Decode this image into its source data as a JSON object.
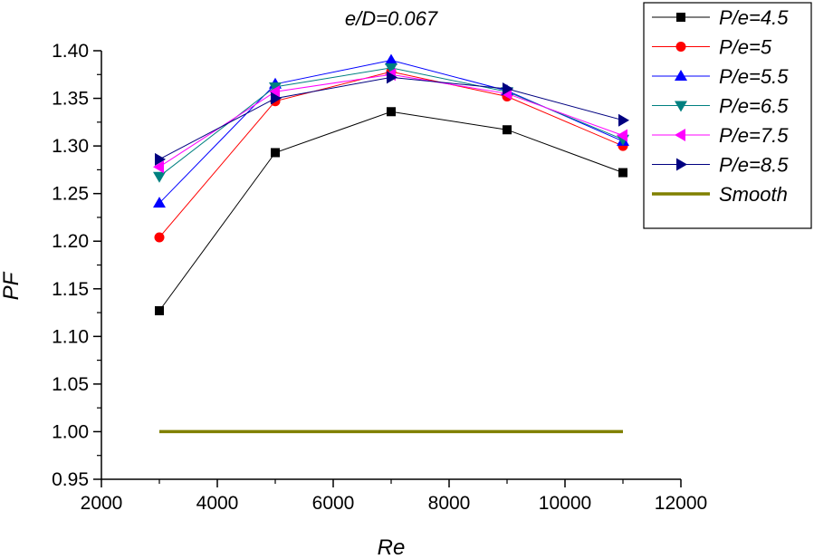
{
  "chart_data": {
    "type": "line",
    "title": "e/D=0.067",
    "xlabel": "Re",
    "ylabel": "PF",
    "xlim": [
      2000,
      12000
    ],
    "ylim": [
      0.95,
      1.4
    ],
    "xticks": [
      2000,
      4000,
      6000,
      8000,
      10000,
      12000
    ],
    "yticks": [
      0.95,
      1.0,
      1.05,
      1.1,
      1.15,
      1.2,
      1.25,
      1.3,
      1.35,
      1.4
    ],
    "xtick_labels": [
      "2000",
      "4000",
      "6000",
      "8000",
      "10000",
      "12000"
    ],
    "ytick_labels": [
      "0.95",
      "1.00",
      "1.05",
      "1.10",
      "1.15",
      "1.20",
      "1.25",
      "1.30",
      "1.35",
      "1.40"
    ],
    "grid": false,
    "legend_position": "top-right",
    "x": [
      3000,
      5000,
      7000,
      9000,
      11000
    ],
    "series": [
      {
        "name": "P/e=4.5",
        "values": [
          1.127,
          1.293,
          1.336,
          1.317,
          1.272
        ],
        "color": "#000000",
        "marker": "square"
      },
      {
        "name": "P/e=5",
        "values": [
          1.204,
          1.347,
          1.378,
          1.352,
          1.3
        ],
        "color": "#ff0000",
        "marker": "circle"
      },
      {
        "name": "P/e=5.5",
        "values": [
          1.24,
          1.365,
          1.39,
          1.358,
          1.305
        ],
        "color": "#0000ff",
        "marker": "triangle-up"
      },
      {
        "name": "P/e=6.5",
        "values": [
          1.268,
          1.362,
          1.382,
          1.357,
          1.307
        ],
        "color": "#008080",
        "marker": "triangle-down"
      },
      {
        "name": "P/e=7.5",
        "values": [
          1.278,
          1.357,
          1.375,
          1.355,
          1.311
        ],
        "color": "#ff00ff",
        "marker": "triangle-left"
      },
      {
        "name": "P/e=8.5",
        "values": [
          1.286,
          1.35,
          1.372,
          1.36,
          1.327
        ],
        "color": "#000080",
        "marker": "triangle-right"
      },
      {
        "name": "Smooth",
        "values": [
          1.0,
          1.0,
          1.0,
          1.0,
          1.0
        ],
        "color": "#808000",
        "marker": "none"
      }
    ]
  }
}
